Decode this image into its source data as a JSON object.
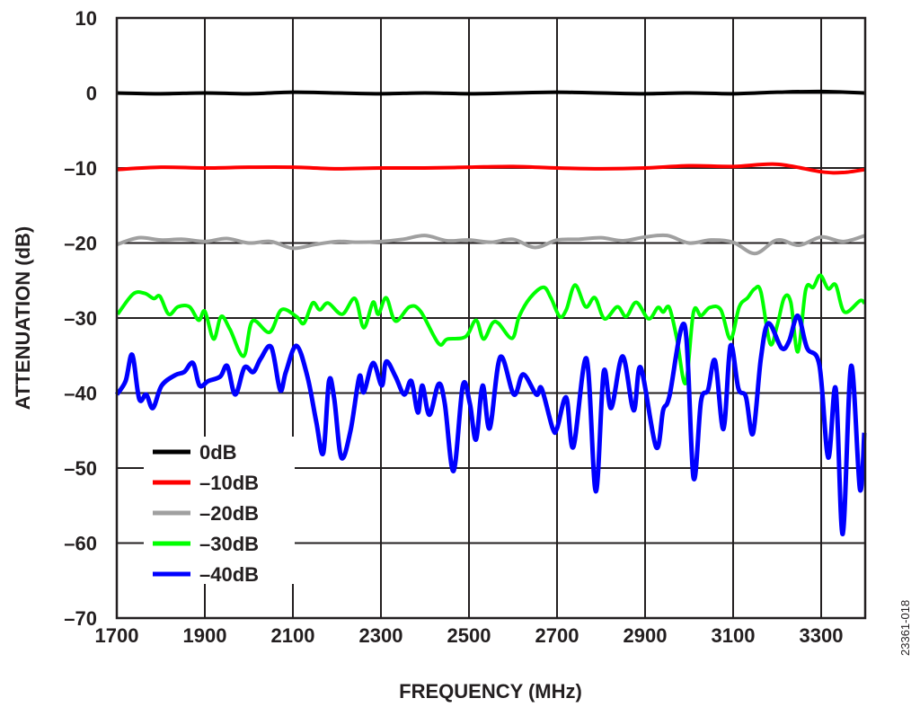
{
  "chart_data": {
    "type": "line",
    "title": "",
    "xlabel": "FREQUENCY (MHz)",
    "ylabel": "ATTENUATION (dB)",
    "xlim": [
      1700,
      3400
    ],
    "ylim": [
      -70,
      10
    ],
    "xticks": [
      1700,
      1900,
      2100,
      2300,
      2500,
      2700,
      2900,
      3100,
      3300
    ],
    "xtick_labels": [
      "1700",
      "1900",
      "2100",
      "2300",
      "2500",
      "2700",
      "2900",
      "3100",
      "3300"
    ],
    "yticks": [
      10,
      0,
      -10,
      -20,
      -30,
      -40,
      -50,
      -60,
      -70
    ],
    "ytick_labels": [
      "10",
      "0",
      "–10",
      "–20",
      "–30",
      "–40",
      "–50",
      "–60",
      "–70"
    ],
    "grid": true,
    "legend_position": "bottom-left",
    "figure_id": "23361-018",
    "series": [
      {
        "name": "0dB",
        "color": "#000000",
        "x": [
          1700,
          1800,
          1900,
          2000,
          2100,
          2200,
          2300,
          2400,
          2500,
          2600,
          2700,
          2800,
          2900,
          3000,
          3100,
          3200,
          3300,
          3400
        ],
        "y": [
          0,
          -0.1,
          0,
          -0.1,
          0.1,
          0,
          -0.1,
          0,
          -0.1,
          0,
          0.1,
          0,
          -0.1,
          0,
          -0.1,
          0.1,
          0.2,
          0
        ]
      },
      {
        "name": "–10dB",
        "color": "#ff0000",
        "x": [
          1700,
          1800,
          1900,
          2000,
          2100,
          2200,
          2300,
          2400,
          2500,
          2600,
          2700,
          2800,
          2900,
          3000,
          3100,
          3200,
          3300,
          3350,
          3400
        ],
        "y": [
          -10.2,
          -9.9,
          -10.0,
          -9.9,
          -9.9,
          -10.1,
          -10.0,
          -10.0,
          -9.9,
          -9.8,
          -10.0,
          -10.1,
          -10.0,
          -9.7,
          -9.8,
          -9.5,
          -10.5,
          -10.6,
          -10.2
        ]
      },
      {
        "name": "–20dB",
        "color": "#a0a0a0",
        "x": [
          1700,
          1750,
          1800,
          1850,
          1900,
          1950,
          2000,
          2050,
          2100,
          2150,
          2200,
          2250,
          2300,
          2350,
          2400,
          2450,
          2500,
          2550,
          2600,
          2650,
          2700,
          2750,
          2800,
          2850,
          2900,
          2950,
          3000,
          3050,
          3100,
          3150,
          3200,
          3250,
          3300,
          3350,
          3400
        ],
        "y": [
          -20.2,
          -19.3,
          -19.6,
          -19.5,
          -19.8,
          -19.4,
          -20.0,
          -19.8,
          -20.7,
          -20.2,
          -19.8,
          -19.9,
          -19.8,
          -19.5,
          -19.0,
          -19.7,
          -19.6,
          -19.9,
          -19.5,
          -20.6,
          -19.6,
          -19.5,
          -19.3,
          -19.7,
          -19.2,
          -19.0,
          -20.0,
          -19.6,
          -19.9,
          -21.4,
          -19.6,
          -20.3,
          -19.2,
          -19.8,
          -19.0
        ]
      },
      {
        "name": "–30dB",
        "color": "#00ff00",
        "x": [
          1702,
          1737,
          1763,
          1784,
          1798,
          1818,
          1839,
          1865,
          1886,
          1900,
          1920,
          1937,
          1957,
          1988,
          2008,
          2047,
          2074,
          2108,
          2125,
          2145,
          2161,
          2180,
          2212,
          2241,
          2261,
          2282,
          2294,
          2312,
          2333,
          2365,
          2390,
          2431,
          2451,
          2492,
          2516,
          2533,
          2553,
          2567,
          2598,
          2614,
          2639,
          2669,
          2686,
          2706,
          2721,
          2741,
          2765,
          2786,
          2808,
          2837,
          2857,
          2880,
          2908,
          2929,
          2941,
          2955,
          2972,
          2992,
          3010,
          3027,
          3047,
          3072,
          3094,
          3114,
          3133,
          3149,
          3163,
          3184,
          3200,
          3216,
          3231,
          3247,
          3265,
          3282,
          3298,
          3316,
          3333,
          3353,
          3388,
          3398
        ],
        "y": [
          -29.5,
          -26.8,
          -26.7,
          -27.4,
          -27.1,
          -29.5,
          -28.5,
          -28.5,
          -30.3,
          -29.1,
          -32.8,
          -29.8,
          -31.5,
          -35.1,
          -30.4,
          -31.9,
          -28.9,
          -29.8,
          -30.7,
          -28.0,
          -28.9,
          -28.0,
          -29.5,
          -27.4,
          -31.3,
          -27.9,
          -29.5,
          -27.3,
          -30.4,
          -28.5,
          -29.1,
          -33.4,
          -32.8,
          -32.5,
          -30.3,
          -32.8,
          -30.7,
          -30.7,
          -32.7,
          -29.8,
          -27.3,
          -25.9,
          -27.3,
          -29.8,
          -28.9,
          -25.6,
          -28.5,
          -27.3,
          -30.1,
          -28.5,
          -29.8,
          -27.9,
          -30.1,
          -28.6,
          -29.2,
          -28.6,
          -32.7,
          -38.7,
          -29.2,
          -29.7,
          -28.6,
          -28.9,
          -32.8,
          -28.5,
          -27.3,
          -26.1,
          -26.5,
          -33.4,
          -31.0,
          -27.3,
          -27.9,
          -34.5,
          -26.2,
          -25.9,
          -24.3,
          -26.1,
          -25.6,
          -29.2,
          -27.7,
          -28.0
        ]
      },
      {
        "name": "–40dB",
        "color": "#0000ff",
        "x": [
          1700,
          1720,
          1735,
          1751,
          1767,
          1782,
          1802,
          1833,
          1853,
          1873,
          1888,
          1908,
          1935,
          1951,
          1969,
          1990,
          2010,
          2027,
          2051,
          2071,
          2084,
          2108,
          2133,
          2153,
          2169,
          2182,
          2194,
          2210,
          2231,
          2251,
          2261,
          2282,
          2302,
          2312,
          2333,
          2353,
          2369,
          2384,
          2394,
          2410,
          2431,
          2445,
          2465,
          2486,
          2502,
          2516,
          2531,
          2547,
          2571,
          2602,
          2623,
          2653,
          2665,
          2690,
          2700,
          2721,
          2737,
          2767,
          2788,
          2806,
          2823,
          2849,
          2874,
          2890,
          2925,
          2941,
          2955,
          2990,
          3010,
          3027,
          3043,
          3059,
          3078,
          3094,
          3112,
          3129,
          3145,
          3163,
          3180,
          3210,
          3227,
          3247,
          3268,
          3296,
          3316,
          3333,
          3349,
          3368,
          3388,
          3398
        ],
        "y": [
          -40.2,
          -38.4,
          -34.9,
          -40.8,
          -40.2,
          -42.0,
          -39.0,
          -37.6,
          -37.2,
          -36.0,
          -39.0,
          -38.4,
          -37.8,
          -36.4,
          -40.2,
          -36.6,
          -37.2,
          -35.4,
          -33.9,
          -39.6,
          -37.2,
          -33.7,
          -37.8,
          -43.8,
          -48.0,
          -38.4,
          -40.8,
          -48.6,
          -45.0,
          -37.8,
          -39.9,
          -36.0,
          -39.0,
          -35.8,
          -37.8,
          -40.2,
          -38.4,
          -42.6,
          -39.0,
          -42.9,
          -38.8,
          -41.4,
          -50.4,
          -39.0,
          -41.4,
          -46.2,
          -39.0,
          -44.7,
          -35.2,
          -40.2,
          -37.5,
          -40.2,
          -39.4,
          -44.7,
          -44.7,
          -40.6,
          -47.2,
          -35.4,
          -53.1,
          -37.2,
          -42.0,
          -35.1,
          -42.3,
          -36.6,
          -47.2,
          -42.3,
          -40.5,
          -31.0,
          -51.3,
          -41.1,
          -39.6,
          -35.7,
          -44.8,
          -33.7,
          -39.4,
          -40.5,
          -45.4,
          -35.4,
          -30.7,
          -34.0,
          -33.1,
          -29.7,
          -34.0,
          -36.3,
          -48.6,
          -39.4,
          -58.8,
          -36.4,
          -52.8,
          -45.3
        ]
      }
    ]
  }
}
